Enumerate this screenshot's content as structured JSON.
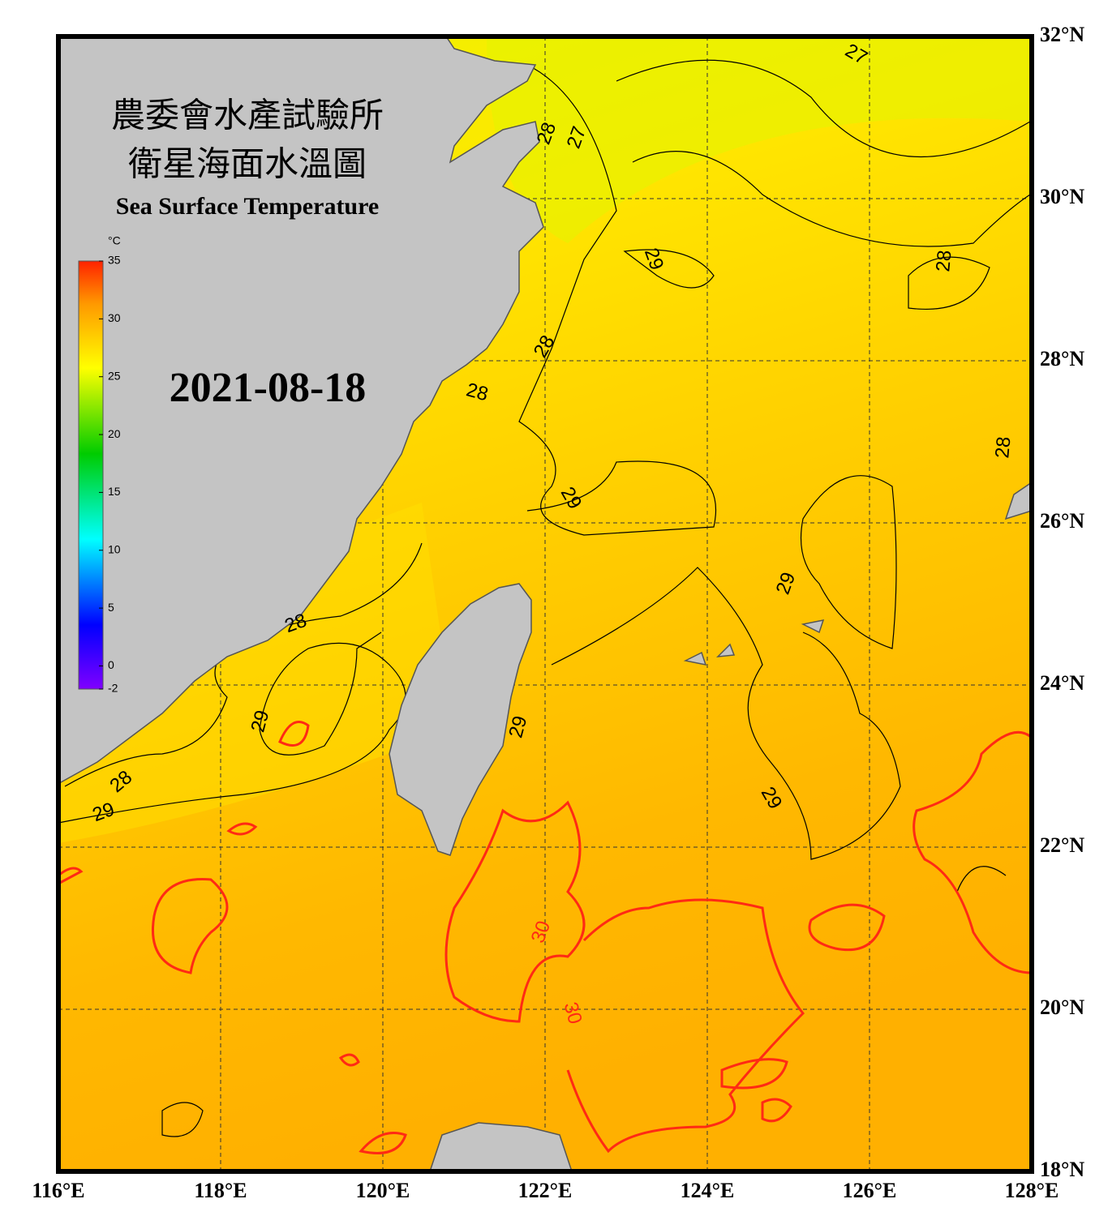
{
  "header": {
    "title_zh_1": "農委會水產試驗所",
    "title_zh_2": "衛星海面水溫圖",
    "title_en": "Sea Surface Temperature",
    "date": "2021-08-18"
  },
  "colorbar": {
    "unit": "°C",
    "range": [
      -2,
      35
    ],
    "ticks": [
      35,
      30,
      25,
      20,
      15,
      10,
      5,
      0,
      -2
    ]
  },
  "map": {
    "lonlim": [
      116,
      128
    ],
    "latlim": [
      18,
      32
    ],
    "lon_ticks": [
      {
        "value": 116,
        "label": "116°E"
      },
      {
        "value": 118,
        "label": "118°E"
      },
      {
        "value": 120,
        "label": "120°E"
      },
      {
        "value": 122,
        "label": "122°E"
      },
      {
        "value": 124,
        "label": "124°E"
      },
      {
        "value": 126,
        "label": "126°E"
      },
      {
        "value": 128,
        "label": "128°E"
      }
    ],
    "lat_ticks": [
      {
        "value": 32,
        "label": "32°N"
      },
      {
        "value": 30,
        "label": "30°N"
      },
      {
        "value": 28,
        "label": "28°N"
      },
      {
        "value": 26,
        "label": "26°N"
      },
      {
        "value": 24,
        "label": "24°N"
      },
      {
        "value": 22,
        "label": "22°N"
      },
      {
        "value": 20,
        "label": "20°N"
      },
      {
        "value": 18,
        "label": "18°N"
      }
    ]
  },
  "contour_labels": [
    27,
    28,
    27,
    29,
    28,
    28,
    28,
    28,
    29,
    29,
    28,
    29,
    29,
    29,
    28,
    29,
    30,
    30
  ]
}
